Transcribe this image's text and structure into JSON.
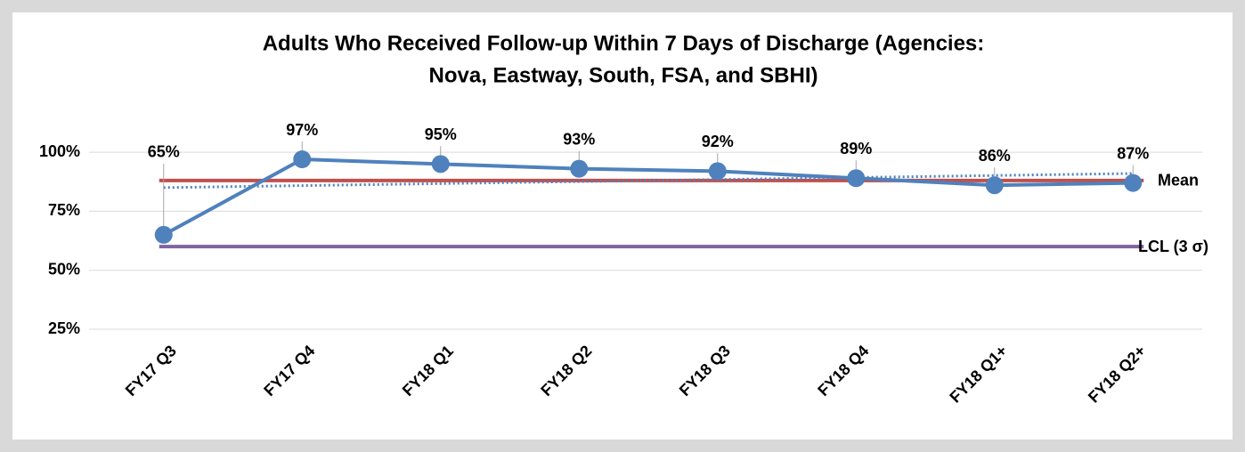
{
  "chart_data": {
    "type": "line",
    "title": [
      "Adults Who Received Follow-up Within 7 Days of Discharge (Agencies:",
      "Nova, Eastway, South, FSA, and SBHI)"
    ],
    "categories": [
      "FY17 Q3",
      "FY17 Q4",
      "FY18 Q1",
      "FY18 Q2",
      "FY18 Q3",
      "FY18 Q4",
      "FY18 Q1+",
      "FY18 Q2+"
    ],
    "series": [
      {
        "color": "#4f81bd",
        "values": [
          65,
          97,
          95,
          93,
          92,
          89,
          86,
          87
        ],
        "value_labels": [
          "65%",
          "97%",
          "95%",
          "93%",
          "92%",
          "89%",
          "86%",
          "87%"
        ]
      }
    ],
    "reference_lines": [
      {
        "name": "Mean",
        "value": 88,
        "color": "#c0504d"
      },
      {
        "name": "LCL (3 σ)",
        "value": 60,
        "color": "#8064a2"
      }
    ],
    "trend_line": {
      "start": 85,
      "end": 91,
      "color": "#4f81bd"
    },
    "ylim": [
      25,
      105
    ],
    "yticks": [
      {
        "value": 25,
        "label": "25%"
      },
      {
        "value": 50,
        "label": "50%"
      },
      {
        "value": 75,
        "label": "75%"
      },
      {
        "value": 100,
        "label": "100%"
      }
    ],
    "grid": true
  }
}
